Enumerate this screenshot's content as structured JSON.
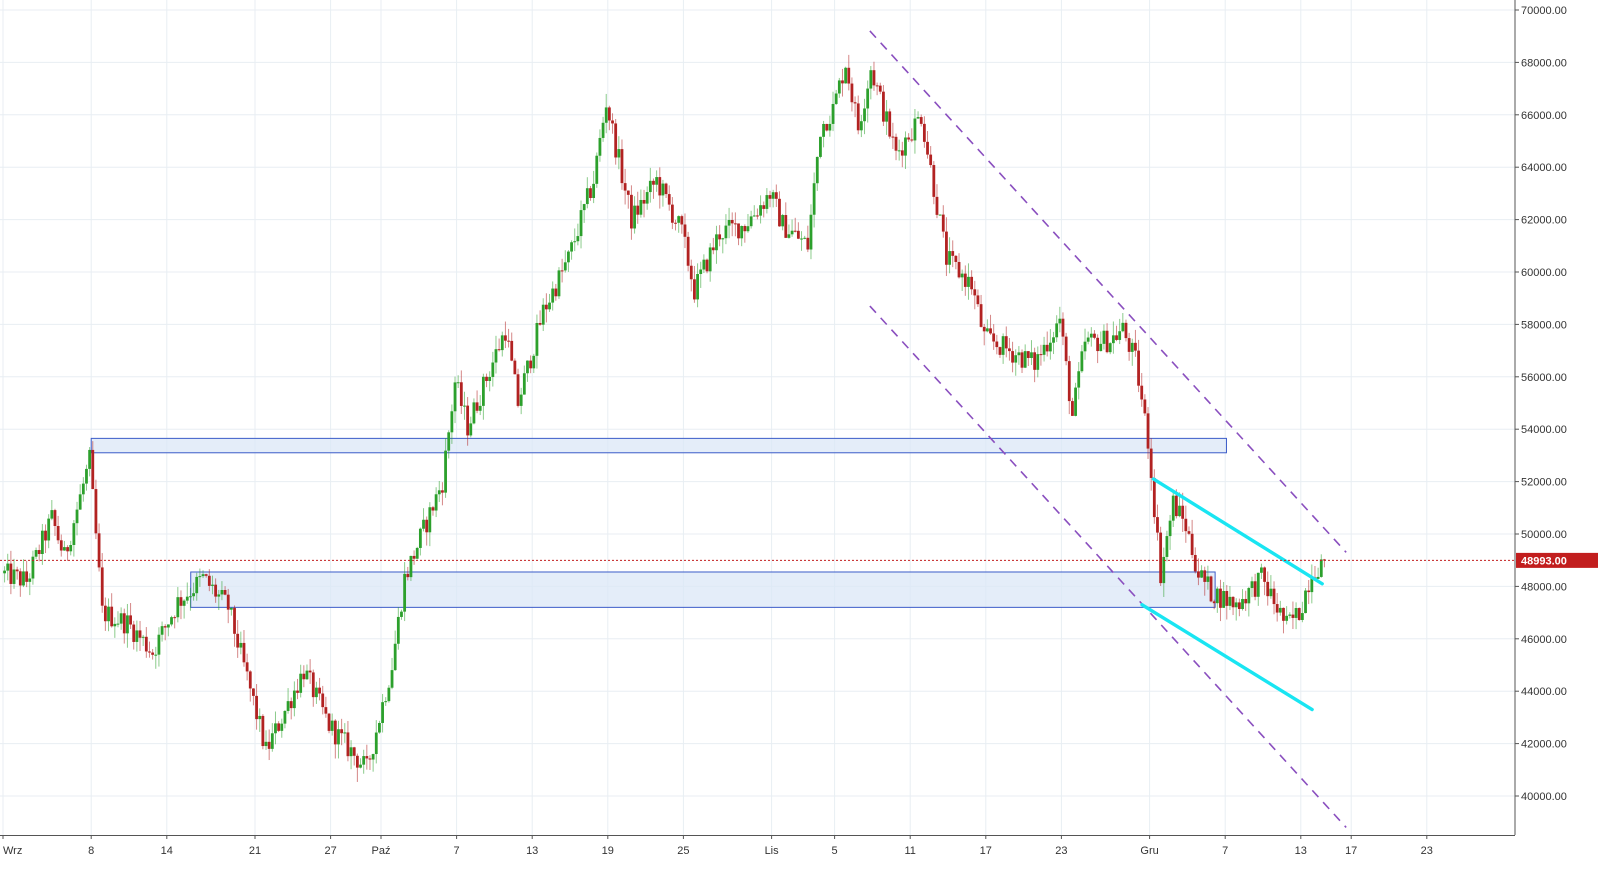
{
  "chart_data": {
    "type": "candlestick",
    "title": "",
    "xlabel": "",
    "ylabel": "",
    "ylim": [
      38500,
      70500
    ],
    "grid": true,
    "y_ticks": [
      "40000.00",
      "42000.00",
      "44000.00",
      "46000.00",
      "48000.00",
      "50000.00",
      "52000.00",
      "54000.00",
      "56000.00",
      "58000.00",
      "60000.00",
      "62000.00",
      "64000.00",
      "66000.00",
      "68000.00",
      "70000.00"
    ],
    "x_ticks": [
      "Wrz",
      "8",
      "14",
      "21",
      "27",
      "Paź",
      "7",
      "13",
      "19",
      "25",
      "Lis",
      "5",
      "11",
      "17",
      "23",
      "Gru",
      "7",
      "13",
      "17",
      "23"
    ],
    "current_price": {
      "value": 48993,
      "label": "48993.00"
    },
    "up_color": "#2ca02c",
    "down_color": "#b22222",
    "anchors": [
      {
        "d": 0,
        "p": 48500
      },
      {
        "d": 2,
        "p": 48200
      },
      {
        "d": 4,
        "p": 50600
      },
      {
        "d": 5,
        "p": 49100
      },
      {
        "d": 7,
        "p": 52800
      },
      {
        "d": 8,
        "p": 47000
      },
      {
        "d": 10,
        "p": 46600
      },
      {
        "d": 12,
        "p": 45500
      },
      {
        "d": 14,
        "p": 47400
      },
      {
        "d": 16,
        "p": 48300
      },
      {
        "d": 18,
        "p": 47200
      },
      {
        "d": 20,
        "p": 43600
      },
      {
        "d": 21,
        "p": 41700
      },
      {
        "d": 24,
        "p": 44800
      },
      {
        "d": 26,
        "p": 42700
      },
      {
        "d": 29,
        "p": 41000
      },
      {
        "d": 31,
        "p": 45000
      },
      {
        "d": 32,
        "p": 48300
      },
      {
        "d": 35,
        "p": 52000
      },
      {
        "d": 36,
        "p": 55800
      },
      {
        "d": 37,
        "p": 54100
      },
      {
        "d": 40,
        "p": 57800
      },
      {
        "d": 41,
        "p": 55000
      },
      {
        "d": 43,
        "p": 58500
      },
      {
        "d": 45,
        "p": 60500
      },
      {
        "d": 47,
        "p": 63500
      },
      {
        "d": 48,
        "p": 66500
      },
      {
        "d": 50,
        "p": 62000
      },
      {
        "d": 52,
        "p": 63500
      },
      {
        "d": 54,
        "p": 61500
      },
      {
        "d": 55,
        "p": 59300
      },
      {
        "d": 57,
        "p": 61500
      },
      {
        "d": 59,
        "p": 61800
      },
      {
        "d": 61,
        "p": 63000
      },
      {
        "d": 62,
        "p": 61800
      },
      {
        "d": 64,
        "p": 61000
      },
      {
        "d": 65,
        "p": 65500
      },
      {
        "d": 66,
        "p": 66200
      },
      {
        "d": 67,
        "p": 68000
      },
      {
        "d": 68,
        "p": 65500
      },
      {
        "d": 69,
        "p": 67800
      },
      {
        "d": 71,
        "p": 64500
      },
      {
        "d": 73,
        "p": 66000
      },
      {
        "d": 75,
        "p": 60500
      },
      {
        "d": 77,
        "p": 59500
      },
      {
        "d": 78,
        "p": 57500
      },
      {
        "d": 80,
        "p": 57000
      },
      {
        "d": 82,
        "p": 56500
      },
      {
        "d": 84,
        "p": 58200
      },
      {
        "d": 85,
        "p": 54500
      },
      {
        "d": 86,
        "p": 57300
      },
      {
        "d": 88,
        "p": 57400
      },
      {
        "d": 89,
        "p": 57800
      },
      {
        "d": 90,
        "p": 56600
      },
      {
        "d": 91,
        "p": 53600
      },
      {
        "d": 92,
        "p": 48500
      },
      {
        "d": 93,
        "p": 51200
      },
      {
        "d": 94,
        "p": 50300
      },
      {
        "d": 95,
        "p": 48500
      },
      {
        "d": 96,
        "p": 47800
      },
      {
        "d": 98,
        "p": 47300
      },
      {
        "d": 100,
        "p": 48300
      },
      {
        "d": 102,
        "p": 46500
      },
      {
        "d": 103,
        "p": 47000
      },
      {
        "d": 104,
        "p": 48600
      },
      {
        "d": 105,
        "p": 48993
      }
    ],
    "annotations": {
      "support_zones": [
        {
          "price_low": 53100,
          "price_high": 53650,
          "date_start": 7.0,
          "date_end": 97.1
        },
        {
          "price_low": 47200,
          "price_high": 48550,
          "date_start": 14.9,
          "date_end": 96.2
        }
      ],
      "purple_channel": [
        {
          "date_start": 68.8,
          "price_start": 69200,
          "date_end": 106.6,
          "price_end": 49300
        },
        {
          "date_start": 68.8,
          "price_start": 58700,
          "date_end": 106.6,
          "price_end": 38800
        }
      ],
      "cyan_wedge": [
        {
          "date_start": 91.3,
          "price_start": 52100,
          "date_end": 104.7,
          "price_end": 48100
        },
        {
          "date_start": 90.4,
          "price_start": 47300,
          "date_end": 103.9,
          "price_end": 43300
        }
      ]
    }
  },
  "colors": {
    "grid": "#e8eef3",
    "zone_fill": "#dbe7f7",
    "zone_stroke": "#3b5bc8",
    "channel": "#8a4fbf",
    "wedge": "#19e5f2",
    "price_line": "#c21e1e",
    "axis_text": "#333333"
  }
}
